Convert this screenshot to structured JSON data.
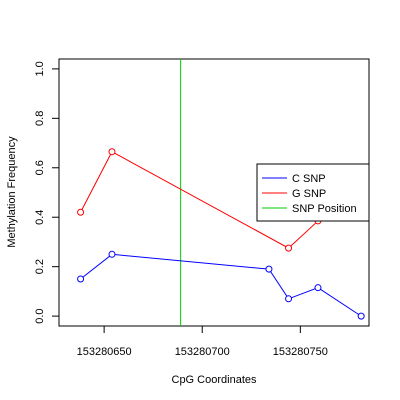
{
  "chart_data": {
    "type": "line",
    "title": "",
    "xlabel": "CpG Coordinates",
    "ylabel": "Methylation Frequency",
    "xlim": [
      153280627,
      153280785
    ],
    "ylim": [
      -0.04,
      1.04
    ],
    "x_ticks": [
      153280650,
      153280700,
      153280750
    ],
    "x_tick_labels": [
      "153280650",
      "153280700",
      "153280750"
    ],
    "y_ticks": [
      0.0,
      0.2,
      0.4,
      0.6,
      0.8,
      1.0
    ],
    "y_tick_labels": [
      "0.0",
      "0.2",
      "0.4",
      "0.6",
      "0.8",
      "1.0"
    ],
    "grid": false,
    "legend_position": "right",
    "series": [
      {
        "name": "C SNP",
        "color": "#0000ff",
        "x": [
          153280638,
          153280654,
          153280734,
          153280744,
          153280759,
          153280781
        ],
        "y": [
          0.15,
          0.25,
          0.19,
          0.07,
          0.115,
          0.0
        ]
      },
      {
        "name": "G SNP",
        "color": "#ff0000",
        "x": [
          153280638,
          153280654,
          153280744,
          153280759
        ],
        "y": [
          0.42,
          0.665,
          0.275,
          0.385
        ]
      }
    ],
    "snp_position": {
      "name": "SNP Position",
      "color": "#00cc00",
      "x": 153280689
    },
    "legend": [
      "C SNP",
      "G SNP",
      "SNP Position"
    ]
  }
}
